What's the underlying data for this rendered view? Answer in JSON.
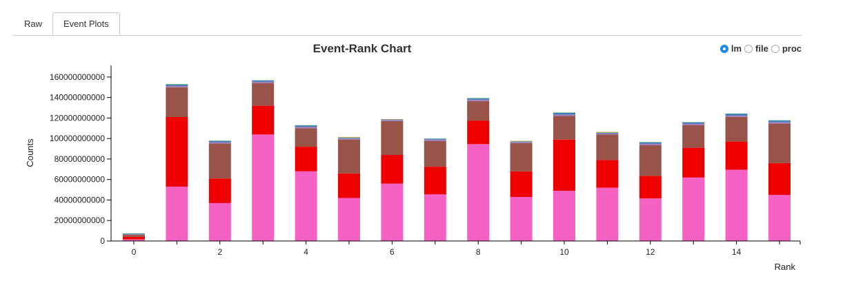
{
  "tabs": [
    {
      "label": "Raw"
    },
    {
      "label": "Event Plots"
    }
  ],
  "radios": [
    {
      "label": "lm",
      "selected": true
    },
    {
      "label": "file",
      "selected": false
    },
    {
      "label": "proc",
      "selected": false
    }
  ],
  "colors": {
    "pink": "#f562c4",
    "red": "#ee0000",
    "brown": "#985449",
    "purple": "#a07ab8",
    "blue": "#3a7bbf",
    "green": "#3c9c5a",
    "orange": "#f0a04b",
    "radio_accent": "#1e88e5"
  },
  "chart_data": {
    "type": "bar",
    "stacked": true,
    "title": "Event-Rank Chart",
    "xlabel": "Rank",
    "ylabel": "Counts",
    "ylim": [
      0,
      170000000000
    ],
    "yticks": [
      0,
      20000000000,
      40000000000,
      60000000000,
      80000000000,
      100000000000,
      120000000000,
      140000000000,
      160000000000
    ],
    "ytick_labels": [
      "0",
      "20000000000",
      "40000000000",
      "60000000000",
      "80000000000",
      "100000000000",
      "120000000000",
      "140000000000",
      "160000000000"
    ],
    "xtick_labels": [
      "0",
      "2",
      "4",
      "6",
      "8",
      "10",
      "12",
      "14"
    ],
    "xtick_values": [
      0,
      2,
      4,
      6,
      8,
      10,
      12,
      14
    ],
    "categories": [
      "0",
      "1",
      "2",
      "3",
      "4",
      "5",
      "6",
      "7",
      "8",
      "9",
      "10",
      "11",
      "12",
      "13",
      "14",
      "15"
    ],
    "series": [
      {
        "color": "#f562c4",
        "values": [
          1500000000,
          53000000000,
          37000000000,
          104000000000,
          68000000000,
          42000000000,
          56000000000,
          45500000000,
          94500000000,
          43000000000,
          49000000000,
          52000000000,
          41500000000,
          62000000000,
          69500000000,
          45000000000
        ]
      },
      {
        "color": "#ee0000",
        "values": [
          2700000000,
          68000000000,
          24000000000,
          28000000000,
          24000000000,
          24000000000,
          28000000000,
          27000000000,
          23000000000,
          25000000000,
          50000000000,
          27000000000,
          22000000000,
          29000000000,
          27500000000,
          31000000000
        ]
      },
      {
        "color": "#985449",
        "values": [
          1800000000,
          29000000000,
          34000000000,
          22000000000,
          18000000000,
          33000000000,
          33000000000,
          25000000000,
          19000000000,
          27500000000,
          23000000000,
          25000000000,
          30000000000,
          22000000000,
          24000000000,
          38500000000
        ]
      },
      {
        "color": "#a07ab8",
        "values": [
          500000000,
          1500000000,
          1500000000,
          1500000000,
          1500000000,
          1000000000,
          1000000000,
          1500000000,
          1500000000,
          1000000000,
          1500000000,
          1000000000,
          1500000000,
          1500000000,
          1500000000,
          1500000000
        ]
      },
      {
        "color": "#3a7bbf",
        "values": [
          600000000,
          1000000000,
          1200000000,
          1000000000,
          1000000000,
          500000000,
          500000000,
          700000000,
          1000000000,
          500000000,
          1500000000,
          500000000,
          1300000000,
          1200000000,
          1500000000,
          1500000000
        ]
      },
      {
        "color": "#3c9c5a",
        "values": [
          200000000,
          500000000,
          200000000,
          300000000,
          500000000,
          500000000,
          300000000,
          300000000,
          500000000,
          300000000,
          300000000,
          500000000,
          200000000,
          300000000,
          300000000,
          300000000
        ]
      },
      {
        "color": "#f0a04b",
        "values": [
          0,
          0,
          0,
          0,
          0,
          500000000,
          200000000,
          0,
          0,
          500000000,
          0,
          500000000,
          0,
          0,
          0,
          0
        ]
      }
    ]
  }
}
